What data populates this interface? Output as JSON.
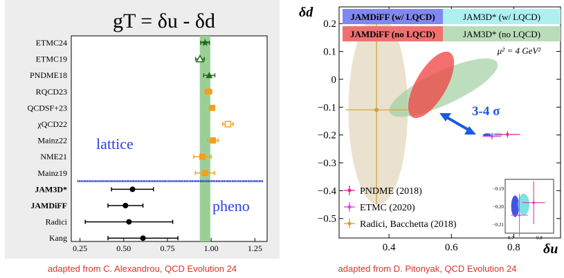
{
  "chart_data": [
    {
      "type": "scatter",
      "title": "gT = δu - δd",
      "orientation": "horizontal-errorbar",
      "xlim": [
        0.2,
        1.32
      ],
      "xticks": [
        0.25,
        0.5,
        0.75,
        1.0,
        1.25
      ],
      "xtick_labels": [
        "0.25",
        "0.50",
        "0.75",
        "1.00",
        "1.25"
      ],
      "band": {
        "min": 0.935,
        "max": 0.995,
        "color": "#9ccf97"
      },
      "annotations": {
        "lattice": "lattice",
        "pheno": "pheno"
      },
      "lattice_separator_color": "#2233dd",
      "points": [
        {
          "label": "ETMC24",
          "value": 0.965,
          "err": 0.025,
          "marker": "star",
          "color": "#1f6b1f"
        },
        {
          "label": "ETMC19",
          "value": 0.936,
          "err": 0.025,
          "marker": "triangle-open",
          "color": "#1f6b1f"
        },
        {
          "label": "PNDME18",
          "value": 0.989,
          "err": 0.032,
          "marker": "triangle",
          "color": "#1f6b1f"
        },
        {
          "label": "RQCD23",
          "value": 0.984,
          "err": 0.02,
          "marker": "square",
          "color": "#f0a020"
        },
        {
          "label": "QCDSF+23",
          "value": 1.005,
          "err": 0.015,
          "marker": "square",
          "color": "#f0a020"
        },
        {
          "label": "χQCD22",
          "value": 1.096,
          "err": 0.03,
          "marker": "square-open",
          "color": "#f0a020"
        },
        {
          "label": "Mainz22",
          "value": 1.01,
          "err": 0.03,
          "marker": "square",
          "color": "#f0a020"
        },
        {
          "label": "NME21",
          "value": 0.95,
          "err": 0.05,
          "marker": "square",
          "color": "#f0a020"
        },
        {
          "label": "Mainz19",
          "value": 0.965,
          "err": 0.055,
          "marker": "square",
          "color": "#f0a020"
        },
        {
          "label": "JAM3D*",
          "value": 0.55,
          "err": 0.12,
          "marker": "circle",
          "color": "#000000",
          "bold": true
        },
        {
          "label": "JAMDiFF",
          "value": 0.51,
          "err": 0.1,
          "marker": "circle",
          "color": "#000000",
          "bold": true
        },
        {
          "label": "Radici",
          "value": 0.53,
          "err": 0.25,
          "marker": "circle",
          "color": "#000000"
        },
        {
          "label": "Kang",
          "value": 0.61,
          "err": 0.2,
          "marker": "circle",
          "color": "#000000"
        }
      ],
      "source_caption": "adapted from C. Alexandrou, QCD Evolution 24"
    },
    {
      "type": "scatter",
      "title": "",
      "xlabel": "δu",
      "ylabel": "δd",
      "xlim": [
        0.24,
        0.95
      ],
      "ylim": [
        -0.57,
        0.26
      ],
      "xticks": [
        0.4,
        0.6,
        0.8
      ],
      "yticks": [
        0.2,
        0.1,
        0,
        -0.1,
        -0.2,
        -0.3,
        -0.4,
        -0.5
      ],
      "ytick_labels": [
        "0.2",
        "0.1",
        "0",
        "−0.1",
        "−0.2",
        "−0.3",
        "−0.4",
        "−0.5"
      ],
      "scale_text": "μ² = 4 GeV²",
      "legend_boxes": [
        {
          "label": "JAMDiFF (w/ LQCD)",
          "fill": "#8088f0",
          "bold": true
        },
        {
          "label": "JAM3D* (w/ LQCD)",
          "fill": "#aef0f0",
          "bold": false
        },
        {
          "label": "JAMDiFF (no LQCD)",
          "fill": "#f07070",
          "bold": true
        },
        {
          "label": "JAM3D* (no LQCD)",
          "fill": "#b9dcb9",
          "bold": false
        }
      ],
      "ellipses": [
        {
          "name": "Radici (2018) 1σ region",
          "cx": 0.365,
          "cy": -0.11,
          "rx": 0.095,
          "ry": 0.34,
          "angle": 0,
          "color": "#d8c9a8",
          "opacity": 0.55
        },
        {
          "name": "JAM3D* (no LQCD)",
          "cx": 0.575,
          "cy": -0.03,
          "rx": 0.19,
          "ry": 0.06,
          "angle": 25,
          "color": "#9fd09f",
          "opacity": 0.7
        },
        {
          "name": "JAMDiFF (no LQCD)",
          "cx": 0.535,
          "cy": -0.02,
          "rx": 0.12,
          "ry": 0.055,
          "angle": 60,
          "color": "#f04040",
          "opacity": 0.75
        },
        {
          "name": "JAMDiFF (w/ LQCD)",
          "cx": 0.715,
          "cy": -0.2,
          "rx": 0.014,
          "ry": 0.006,
          "angle": 0,
          "color": "#3040e0",
          "opacity": 0.9
        },
        {
          "name": "JAM3D* (w/ LQCD)",
          "cx": 0.745,
          "cy": -0.199,
          "rx": 0.02,
          "ry": 0.006,
          "angle": 0,
          "color": "#6ee0e0",
          "opacity": 0.9
        }
      ],
      "points": [
        {
          "label": "PNDME (2018)",
          "x": 0.78,
          "y": -0.198,
          "xerr": 0.04,
          "yerr": 0.012,
          "color": "#e020a0",
          "marker": "plus"
        },
        {
          "label": "ETMC (2020)",
          "x": 0.73,
          "y": -0.205,
          "xerr": 0.03,
          "yerr": 0.012,
          "color": "#e040e0",
          "marker": "cross"
        },
        {
          "label": "Radici, Bacchetta (2018)",
          "x": 0.36,
          "y": -0.11,
          "xerr": 0.1,
          "yerr": 0.34,
          "color": "#d0a030",
          "marker": "dot"
        }
      ],
      "tension_label": "3-4 σ",
      "inset": {
        "xlim": [
          0.68,
          0.85
        ],
        "ylim": [
          -0.215,
          -0.185
        ],
        "xticks": [
          0.7,
          0.8
        ],
        "yticks": [
          -0.19,
          -0.2,
          -0.21
        ],
        "ytick_labels": [
          "−0.19",
          "−0.20",
          "−0.21"
        ]
      },
      "source_caption": "adapted from D. Pitonyak, QCD Evolution 24"
    }
  ]
}
